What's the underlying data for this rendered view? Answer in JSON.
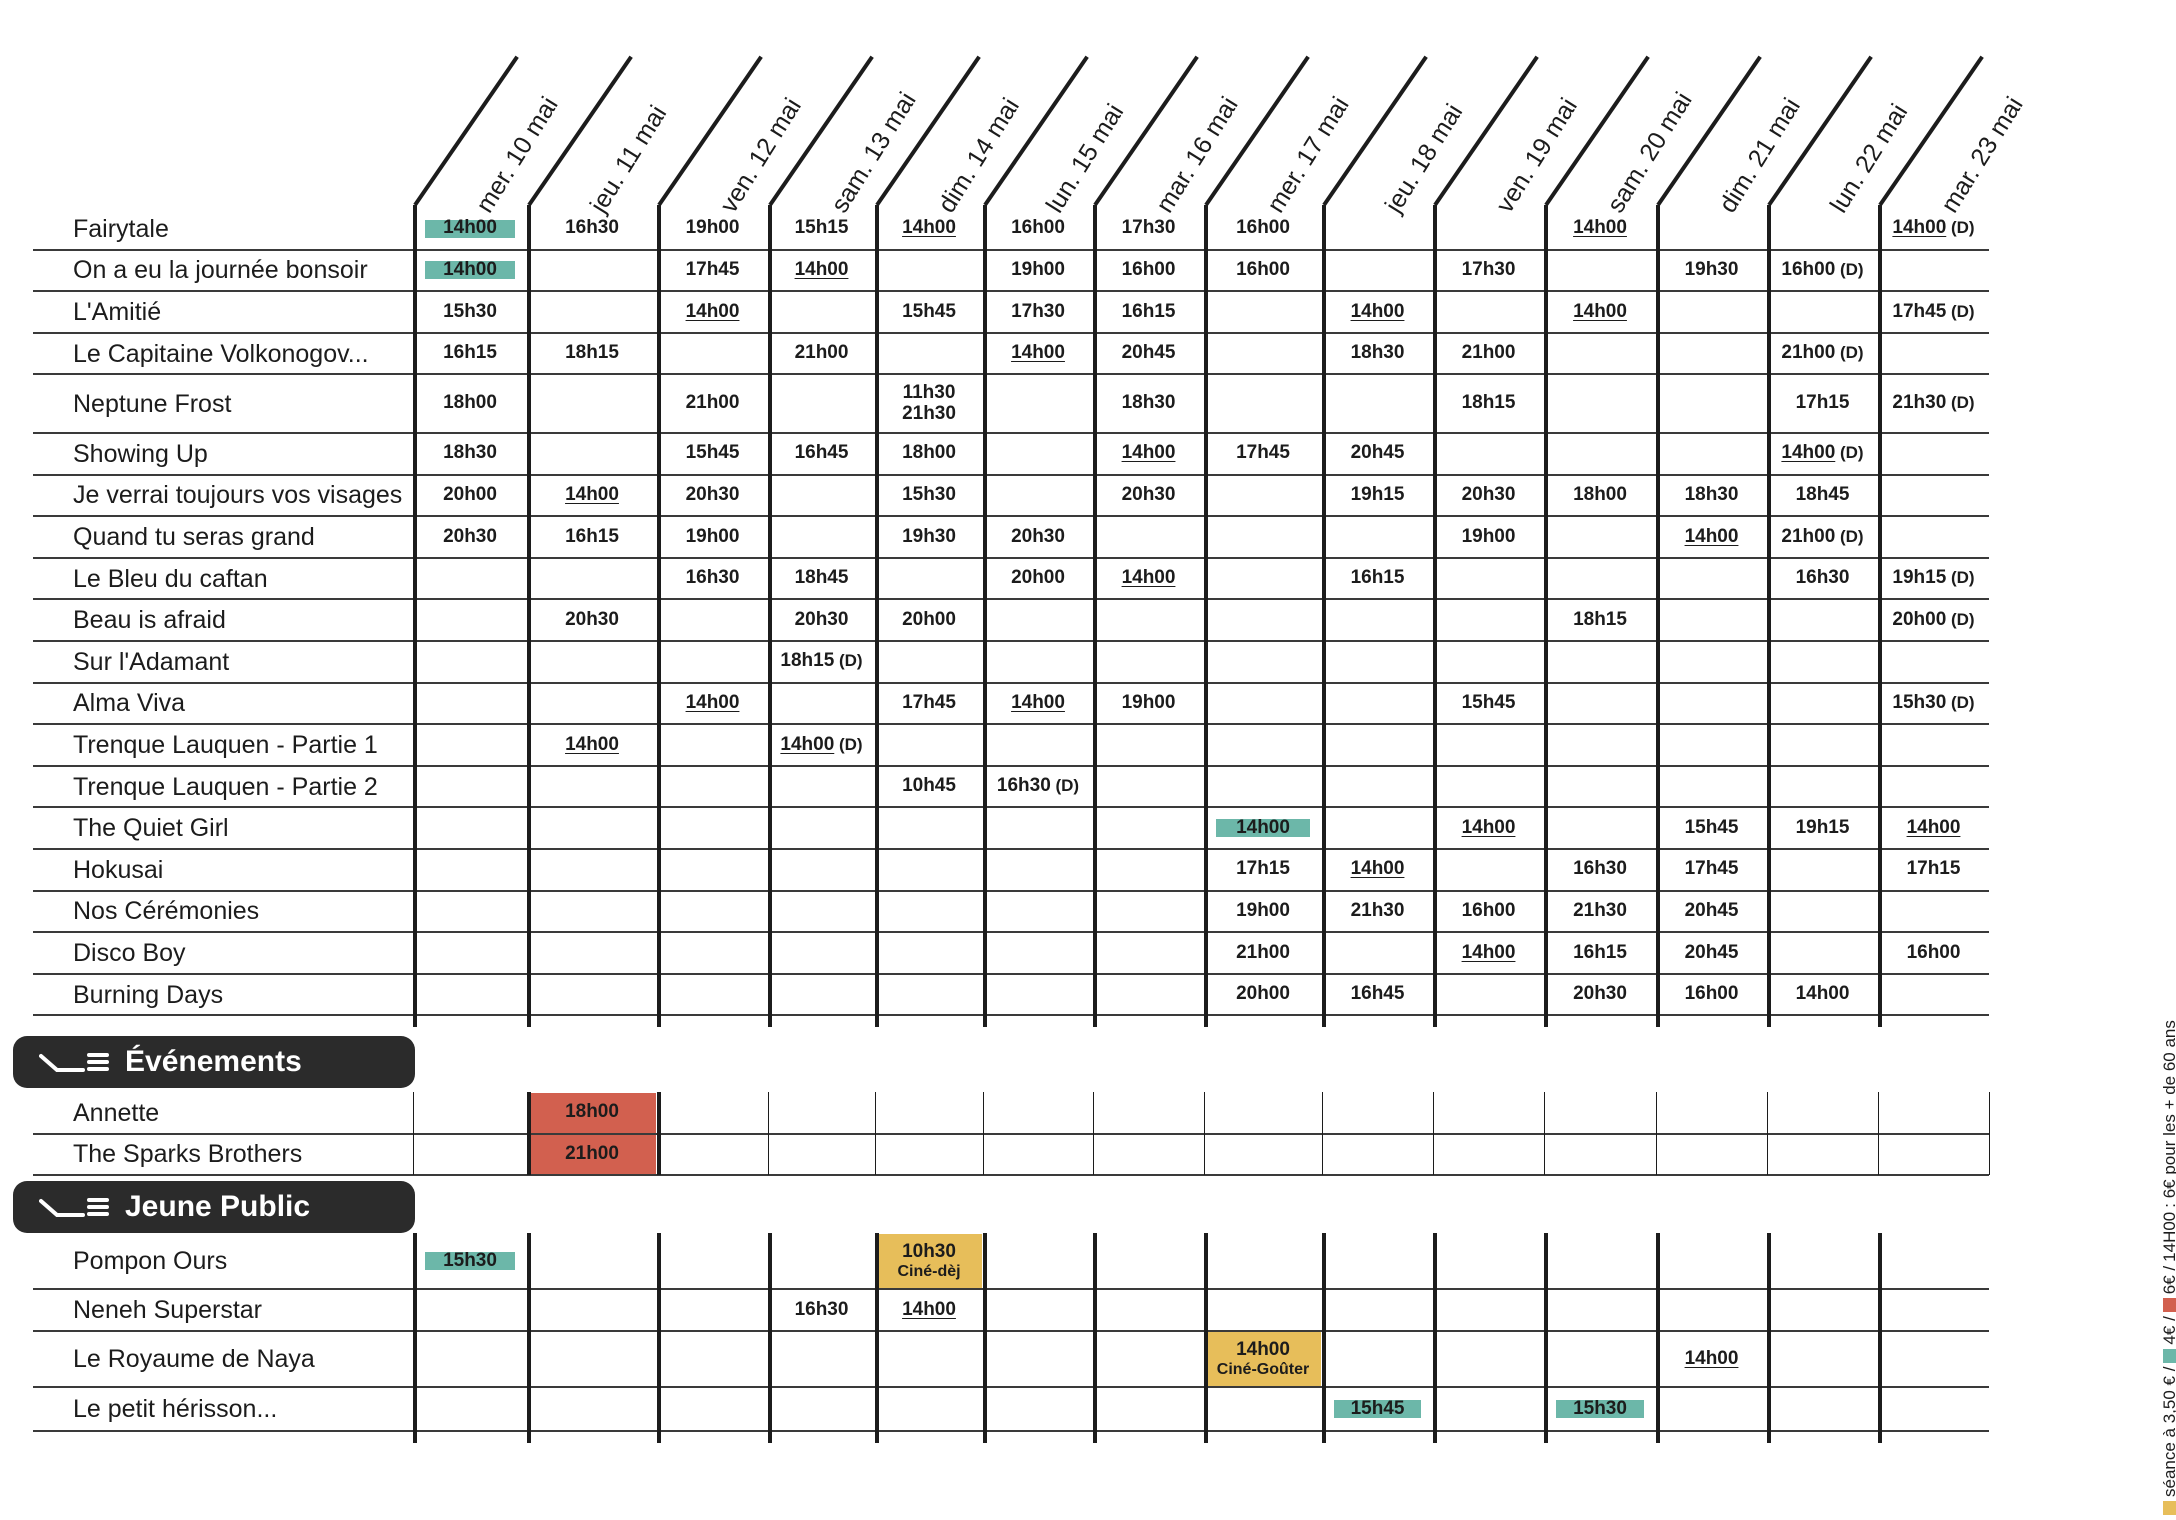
{
  "colors": {
    "grid": "#1c1c1c",
    "teal": "#6cb7a9",
    "red": "#d2604f",
    "yellow": "#e7be5a",
    "pill": "#2b2b2b"
  },
  "dates": [
    "mer. 10 mai",
    "jeu. 11 mai",
    "ven. 12 mai",
    "sam. 13 mai",
    "dim. 14 mai",
    "lun. 15 mai",
    "mar. 16 mai",
    "mer. 17 mai",
    "jeu. 18 mai",
    "ven. 19 mai",
    "sam. 20 mai",
    "dim. 21 mai",
    "lun. 22 mai",
    "mar. 23 mai"
  ],
  "films": [
    {
      "title": "Fairytale",
      "sessions": {
        "0": "14h00|t",
        "1": "16h30",
        "2": "19h00",
        "3": "15h15",
        "4": "14h00|u",
        "5": "16h00",
        "6": "17h30",
        "7": "16h00",
        "10": "14h00|u",
        "13": "14h00|u|D"
      }
    },
    {
      "title": "On a eu la journée bonsoir",
      "sessions": {
        "0": "14h00|t",
        "2": "17h45",
        "3": "14h00|u",
        "5": "19h00",
        "6": "16h00",
        "7": "16h00",
        "9": "17h30",
        "11": "19h30",
        "12": "16h00|D"
      }
    },
    {
      "title": "L'Amitié",
      "sessions": {
        "0": "15h30",
        "2": "14h00|u",
        "4": "15h45",
        "5": "17h30",
        "6": "16h15",
        "8": "14h00|u",
        "10": "14h00|u",
        "13": "17h45|D"
      }
    },
    {
      "title": "Le Capitaine Volkonogov...",
      "sessions": {
        "0": "16h15",
        "1": "18h15",
        "3": "21h00",
        "5": "14h00|u",
        "6": "20h45",
        "8": "18h30",
        "9": "21h00",
        "12": "21h00|D"
      }
    },
    {
      "title": "Neptune Frost",
      "tall": true,
      "sessions": {
        "0": "18h00",
        "2": "21h00",
        "4": "11h30\n21h30",
        "6": "18h30",
        "9": "18h15",
        "12": "17h15",
        "13": "21h30|D"
      }
    },
    {
      "title": "Showing Up",
      "sessions": {
        "0": "18h30",
        "2": "15h45",
        "3": "16h45",
        "4": "18h00",
        "6": "14h00|u",
        "7": "17h45",
        "8": "20h45",
        "12": "14h00|u|D"
      }
    },
    {
      "title": "Je verrai toujours vos visages",
      "sessions": {
        "0": "20h00",
        "1": "14h00|u",
        "2": "20h30",
        "4": "15h30",
        "6": "20h30",
        "8": "19h15",
        "9": "20h30",
        "10": "18h00",
        "11": "18h30",
        "12": "18h45"
      }
    },
    {
      "title": "Quand tu seras grand",
      "sessions": {
        "0": "20h30",
        "1": "16h15",
        "2": "19h00",
        "4": "19h30",
        "5": "20h30",
        "9": "19h00",
        "11": "14h00|u",
        "12": "21h00|D"
      }
    },
    {
      "title": "Le Bleu du caftan",
      "sessions": {
        "2": "16h30",
        "3": "18h45",
        "5": "20h00",
        "6": "14h00|u",
        "8": "16h15",
        "12": "16h30",
        "13": "19h15|D"
      }
    },
    {
      "title": "Beau is afraid",
      "sessions": {
        "1": "20h30",
        "3": "20h30",
        "4": "20h00",
        "10": "18h15",
        "13": "20h00|D"
      }
    },
    {
      "title": "Sur l'Adamant",
      "sessions": {
        "3": "18h15|D"
      }
    },
    {
      "title": "Alma Viva",
      "sessions": {
        "2": "14h00|u",
        "4": "17h45",
        "5": "14h00|u",
        "6": "19h00",
        "9": "15h45",
        "13": "15h30|D"
      }
    },
    {
      "title": "Trenque Lauquen - Partie 1",
      "sessions": {
        "1": "14h00|u",
        "3": "14h00|u|D"
      }
    },
    {
      "title": "Trenque Lauquen - Partie 2",
      "sessions": {
        "4": "10h45",
        "5": "16h30|D"
      }
    },
    {
      "title": "The Quiet Girl",
      "sessions": {
        "7": "14h00|t",
        "9": "14h00|u",
        "11": "15h45",
        "12": "19h15",
        "13": "14h00|u"
      }
    },
    {
      "title": "Hokusai",
      "sessions": {
        "7": "17h15",
        "8": "14h00|u",
        "10": "16h30",
        "11": "17h45",
        "13": "17h15"
      }
    },
    {
      "title": "Nos Cérémonies",
      "sessions": {
        "7": "19h00",
        "8": "21h30",
        "9": "16h00",
        "10": "21h30",
        "11": "20h45"
      }
    },
    {
      "title": "Disco Boy",
      "sessions": {
        "7": "21h00",
        "9": "14h00|u",
        "10": "16h15",
        "11": "20h45",
        "13": "16h00"
      }
    },
    {
      "title": "Burning Days",
      "sessions": {
        "7": "20h00",
        "8": "16h45",
        "10": "20h30",
        "11": "16h00",
        "12": "14h00"
      }
    }
  ],
  "events": {
    "title": "Événements",
    "films": [
      {
        "title": "Annette",
        "sessions": {
          "1": "18h00|r"
        }
      },
      {
        "title": "The Sparks Brothers",
        "sessions": {
          "1": "21h00|r"
        }
      }
    ]
  },
  "jeune_public": {
    "title": "Jeune Public",
    "films": [
      {
        "title": "Pompon Ours",
        "sessions": {
          "0": "15h30|t",
          "4": "10h30|y|Ciné-dèj"
        }
      },
      {
        "title": "Neneh Superstar",
        "sessions": {
          "3": "16h30",
          "4": "14h00|u"
        }
      },
      {
        "title": "Le Royaume de Naya",
        "sessions": {
          "7": "14h00|y|Ciné-Goûter",
          "11": "14h00|u"
        }
      },
      {
        "title": "Le petit hérisson...",
        "sessions": {
          "8": "15h45|t",
          "10": "15h30|t"
        }
      }
    ]
  },
  "legend": {
    "text1": "séance à 3,50 € /",
    "text2": "4€ /",
    "text3": "6€ pour les + de 60 ans",
    "text3_underlined": "14H00",
    "text3_sep": "6€ /",
    "text3_tail": ": 6€ pour les + de 60 ans"
  }
}
